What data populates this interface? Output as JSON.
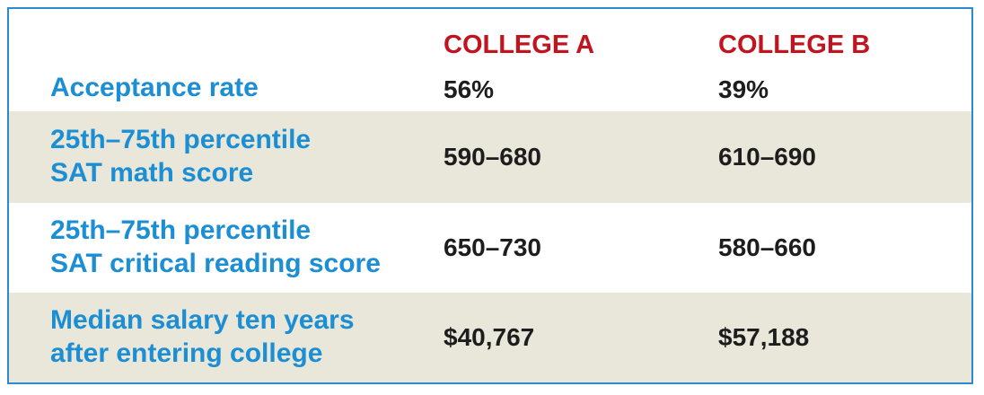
{
  "headers": {
    "college_a": "COLLEGE A",
    "college_b": "COLLEGE B"
  },
  "rows": [
    {
      "label_lines": [
        "Acceptance rate"
      ],
      "college_a": "56%",
      "college_b": "39%",
      "shaded": false
    },
    {
      "label_lines": [
        "25th–75th percentile",
        "SAT math score"
      ],
      "college_a": "590–680",
      "college_b": "610–690",
      "shaded": true
    },
    {
      "label_lines": [
        "25th–75th percentile",
        "SAT critical reading score"
      ],
      "college_a": "650–730",
      "college_b": "580–660",
      "shaded": false
    },
    {
      "label_lines": [
        "Median salary ten years",
        "after entering college"
      ],
      "college_a": "$40,767",
      "college_b": "$57,188",
      "shaded": true
    }
  ],
  "colors": {
    "border": "#2a8bd0",
    "label": "#1c8ed3",
    "header": "#c1141f",
    "shade": "#e9e6da",
    "value": "#1d1d1d"
  }
}
